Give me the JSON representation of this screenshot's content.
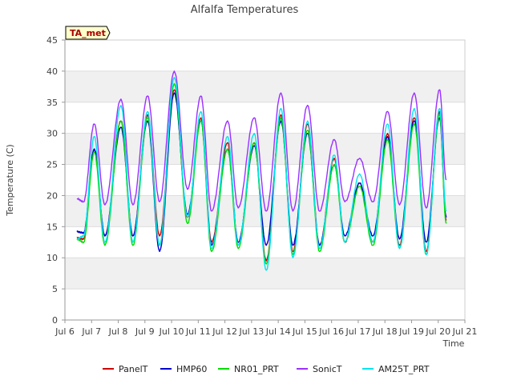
{
  "chart_data": {
    "type": "line",
    "title": "Alfalfa Temperatures",
    "xlabel": "Time",
    "ylabel": "Temperature (C)",
    "badge": "TA_met",
    "ylim": [
      0,
      45
    ],
    "yticks": [
      0,
      5,
      10,
      15,
      20,
      25,
      30,
      35,
      40,
      45
    ],
    "xlim": [
      6,
      21
    ],
    "xticks": [
      {
        "value": 6,
        "label": "Jul 6"
      },
      {
        "value": 7,
        "label": "Jul 7"
      },
      {
        "value": 8,
        "label": "Jul 8"
      },
      {
        "value": 9,
        "label": "Jul 9"
      },
      {
        "value": 10,
        "label": "Jul 10"
      },
      {
        "value": 11,
        "label": "Jul 11"
      },
      {
        "value": 12,
        "label": "Jul 12"
      },
      {
        "value": 13,
        "label": "Jul 13"
      },
      {
        "value": 14,
        "label": "Jul 14"
      },
      {
        "value": 15,
        "label": "Jul 15"
      },
      {
        "value": 16,
        "label": "Jul 16"
      },
      {
        "value": 17,
        "label": "Jul 17"
      },
      {
        "value": 18,
        "label": "Jul 18"
      },
      {
        "value": 19,
        "label": "Jul 19"
      },
      {
        "value": 20,
        "label": "Jul 20"
      },
      {
        "value": 21,
        "label": "Jul 21"
      }
    ],
    "grid": true,
    "legend_position": "bottom",
    "series": [
      {
        "name": "PanelT",
        "color": "#cc0000",
        "values": [
          13.2,
          13.0,
          27.5,
          13.5,
          32.0,
          13.5,
          33.0,
          13.5,
          37.0,
          16.5,
          32.5,
          12.5,
          28.5,
          12.5,
          28.5,
          9.5,
          33.0,
          11.0,
          31.5,
          12.0,
          26.0,
          12.5,
          22.0,
          12.5,
          30.0,
          12.0,
          32.5,
          11.0,
          33.5,
          16.0
        ]
      },
      {
        "name": "HMP60",
        "color": "#0000cc",
        "values": [
          14.2,
          14.0,
          27.5,
          13.5,
          31.0,
          13.5,
          32.0,
          11.0,
          36.5,
          17.0,
          32.0,
          12.0,
          27.5,
          12.5,
          28.0,
          12.0,
          32.0,
          12.0,
          30.0,
          12.0,
          25.0,
          13.5,
          22.0,
          13.5,
          29.5,
          13.0,
          32.0,
          12.5,
          32.5,
          16.5
        ]
      },
      {
        "name": "NR01_PRT",
        "color": "#00dd00",
        "values": [
          13.0,
          12.5,
          27.0,
          12.0,
          32.0,
          12.0,
          32.5,
          12.0,
          38.0,
          15.5,
          32.0,
          11.0,
          27.5,
          11.5,
          28.5,
          9.0,
          32.5,
          10.5,
          30.5,
          11.0,
          25.0,
          12.5,
          21.5,
          12.0,
          29.0,
          11.5,
          31.5,
          10.5,
          33.0,
          15.5
        ]
      },
      {
        "name": "SonicT",
        "color": "#9b30ff",
        "values": [
          19.5,
          19.0,
          31.5,
          18.5,
          35.5,
          18.5,
          36.0,
          19.0,
          40.0,
          21.0,
          36.0,
          17.5,
          32.0,
          18.0,
          32.5,
          17.5,
          36.5,
          17.5,
          34.5,
          17.5,
          29.0,
          19.0,
          26.0,
          19.0,
          33.5,
          18.5,
          36.5,
          18.0,
          37.0,
          22.5
        ]
      },
      {
        "name": "AM25T_PRT",
        "color": "#00e5ee",
        "values": [
          13.0,
          13.5,
          29.5,
          12.5,
          34.5,
          12.5,
          33.5,
          12.0,
          39.0,
          16.5,
          33.5,
          11.5,
          29.5,
          12.0,
          30.0,
          8.0,
          34.0,
          10.0,
          32.0,
          11.5,
          26.5,
          12.5,
          23.5,
          12.5,
          31.5,
          11.5,
          34.0,
          10.5,
          34.0,
          17.5
        ]
      }
    ],
    "x": [
      6.45,
      6.7,
      7.1,
      7.5,
      8.1,
      8.55,
      9.1,
      9.55,
      10.1,
      10.6,
      11.1,
      11.5,
      12.1,
      12.5,
      13.1,
      13.55,
      14.1,
      14.55,
      15.1,
      15.55,
      16.1,
      16.5,
      17.05,
      17.55,
      18.1,
      18.55,
      19.1,
      19.55,
      20.05,
      20.3
    ]
  }
}
